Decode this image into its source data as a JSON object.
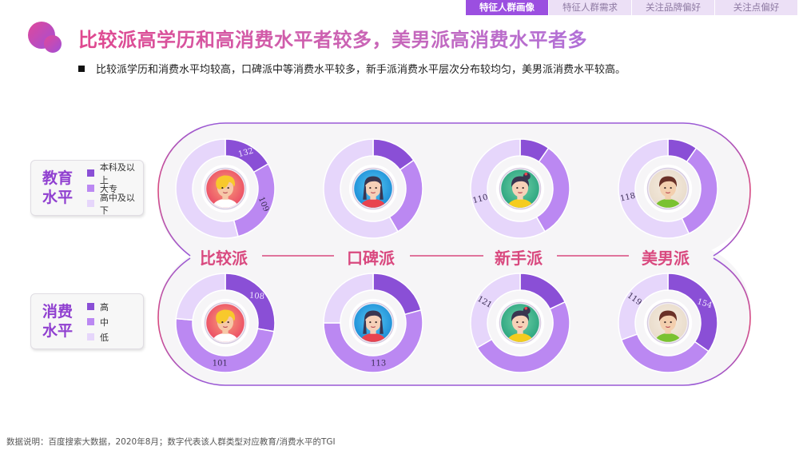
{
  "tabs": [
    {
      "label": "特征人群画像",
      "active": true
    },
    {
      "label": "特征人群需求",
      "active": false
    },
    {
      "label": "关注品牌偏好",
      "active": false
    },
    {
      "label": "关注点偏好",
      "active": false
    }
  ],
  "header": {
    "title": "比较派高学历和高消费水平者较多，美男派高消费水平者多",
    "subtitle": "比较派学历和消费水平均较高，口碑派中等消费水平较多，新手派消费水平层次分布较均匀，美男派消费水平较高。"
  },
  "legends": {
    "education": {
      "title_line1": "教育",
      "title_line2": "水平",
      "items": [
        {
          "label": "本科及以上",
          "color": "#8a4fd6"
        },
        {
          "label": "大专",
          "color": "#bb88f2"
        },
        {
          "label": "高中及以下",
          "color": "#e6d6fb"
        }
      ]
    },
    "consumption": {
      "title_line1": "消费",
      "title_line2": "水平",
      "items": [
        {
          "label": "高",
          "color": "#8a4fd6"
        },
        {
          "label": "中",
          "color": "#bb88f2"
        },
        {
          "label": "低",
          "color": "#e6d6fb"
        }
      ]
    }
  },
  "groups": [
    {
      "label": "比较派",
      "avatar": "blonde-woman-avatar"
    },
    {
      "label": "口碑派",
      "avatar": "dark-hair-woman-avatar"
    },
    {
      "label": "新手派",
      "avatar": "ponytail-girl-avatar"
    },
    {
      "label": "美男派",
      "avatar": "young-man-avatar"
    }
  ],
  "colors": {
    "dark": "#8a4fd6",
    "medium": "#bb88f2",
    "light": "#e6d6fb",
    "accent_pink": "#d9497f",
    "frame_purple": "#9a5ad6"
  },
  "chart_data": [
    {
      "type": "pie",
      "title": "教育水平",
      "categories": [
        "本科及以上",
        "大专",
        "高中及以下"
      ],
      "series": [
        {
          "name": "比较派",
          "share_deg": [
            60,
            105,
            195
          ],
          "tgi_labels": {
            "本科及以上": 132,
            "大专": 109
          }
        },
        {
          "name": "口碑派",
          "share_deg": [
            55,
            95,
            210
          ],
          "tgi_labels": {}
        },
        {
          "name": "新手派",
          "share_deg": [
            35,
            115,
            210
          ],
          "tgi_labels": {
            "高中及以下": 110
          }
        },
        {
          "name": "美男派",
          "share_deg": [
            35,
            120,
            205
          ],
          "tgi_labels": {
            "高中及以下": 118
          }
        }
      ]
    },
    {
      "type": "pie",
      "title": "消费水平",
      "categories": [
        "高",
        "中",
        "低"
      ],
      "series": [
        {
          "name": "比较派",
          "share_deg": [
            100,
            175,
            85
          ],
          "tgi_labels": {
            "高": 108,
            "中": 101
          }
        },
        {
          "name": "口碑派",
          "share_deg": [
            75,
            195,
            90
          ],
          "tgi_labels": {
            "中": 113
          }
        },
        {
          "name": "新手派",
          "share_deg": [
            65,
            175,
            120
          ],
          "tgi_labels": {
            "低": 121
          }
        },
        {
          "name": "美男派",
          "share_deg": [
            125,
            125,
            110
          ],
          "tgi_labels": {
            "高": 154,
            "低": 119
          }
        }
      ]
    }
  ],
  "footnote": "数据说明：百度搜索大数据，2020年8月；数字代表该人群类型对应教育/消费水平的TGI"
}
